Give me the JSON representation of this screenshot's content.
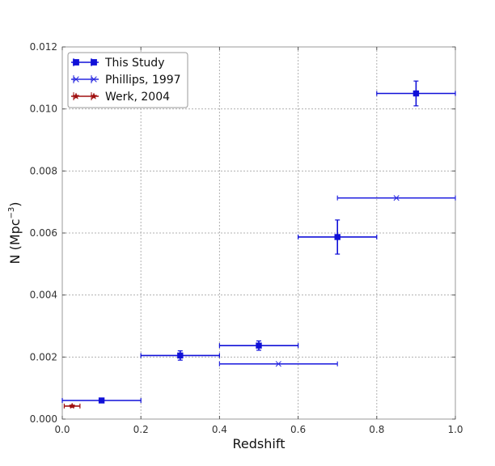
{
  "chart_data": {
    "type": "scatter",
    "xlabel": "Redshift",
    "ylabel": "N (Mpc",
    "ylabel_exponent": "−3",
    "ylabel_close": ")",
    "xlim": [
      0.0,
      1.0
    ],
    "ylim": [
      0.0,
      0.012
    ],
    "xticks": [
      "0.0",
      "0.2",
      "0.4",
      "0.6",
      "0.8",
      "1.0"
    ],
    "yticks": [
      "0.000",
      "0.002",
      "0.004",
      "0.006",
      "0.008",
      "0.010",
      "0.012"
    ],
    "grid": true,
    "legend_position": "top-left",
    "series": [
      {
        "name": "This Study",
        "marker": "square",
        "color": "#1010d8",
        "points": [
          {
            "x": 0.1,
            "xerr": 0.1,
            "y": 0.0006,
            "yerr": 4e-05
          },
          {
            "x": 0.3,
            "xerr": 0.1,
            "y": 0.00205,
            "yerr": 0.00015
          },
          {
            "x": 0.5,
            "xerr": 0.1,
            "y": 0.00237,
            "yerr": 0.00015
          },
          {
            "x": 0.7,
            "xerr": 0.1,
            "y": 0.00587,
            "yerr": 0.00055
          },
          {
            "x": 0.9,
            "xerr": 0.1,
            "y": 0.0105,
            "yerr": 0.0004
          }
        ]
      },
      {
        "name": "Phillips, 1997",
        "marker": "x",
        "color": "#2828e0",
        "points": [
          {
            "x": 0.55,
            "xerr": 0.15,
            "y": 0.00178,
            "yerr": 0
          },
          {
            "x": 0.85,
            "xerr": 0.15,
            "y": 0.00713,
            "yerr": 0
          }
        ]
      },
      {
        "name": "Werk, 2004",
        "marker": "star",
        "color": "#a01010",
        "points": [
          {
            "x": 0.025,
            "xerr": 0.02,
            "y": 0.00042,
            "yerr": 3e-05
          }
        ]
      }
    ]
  }
}
